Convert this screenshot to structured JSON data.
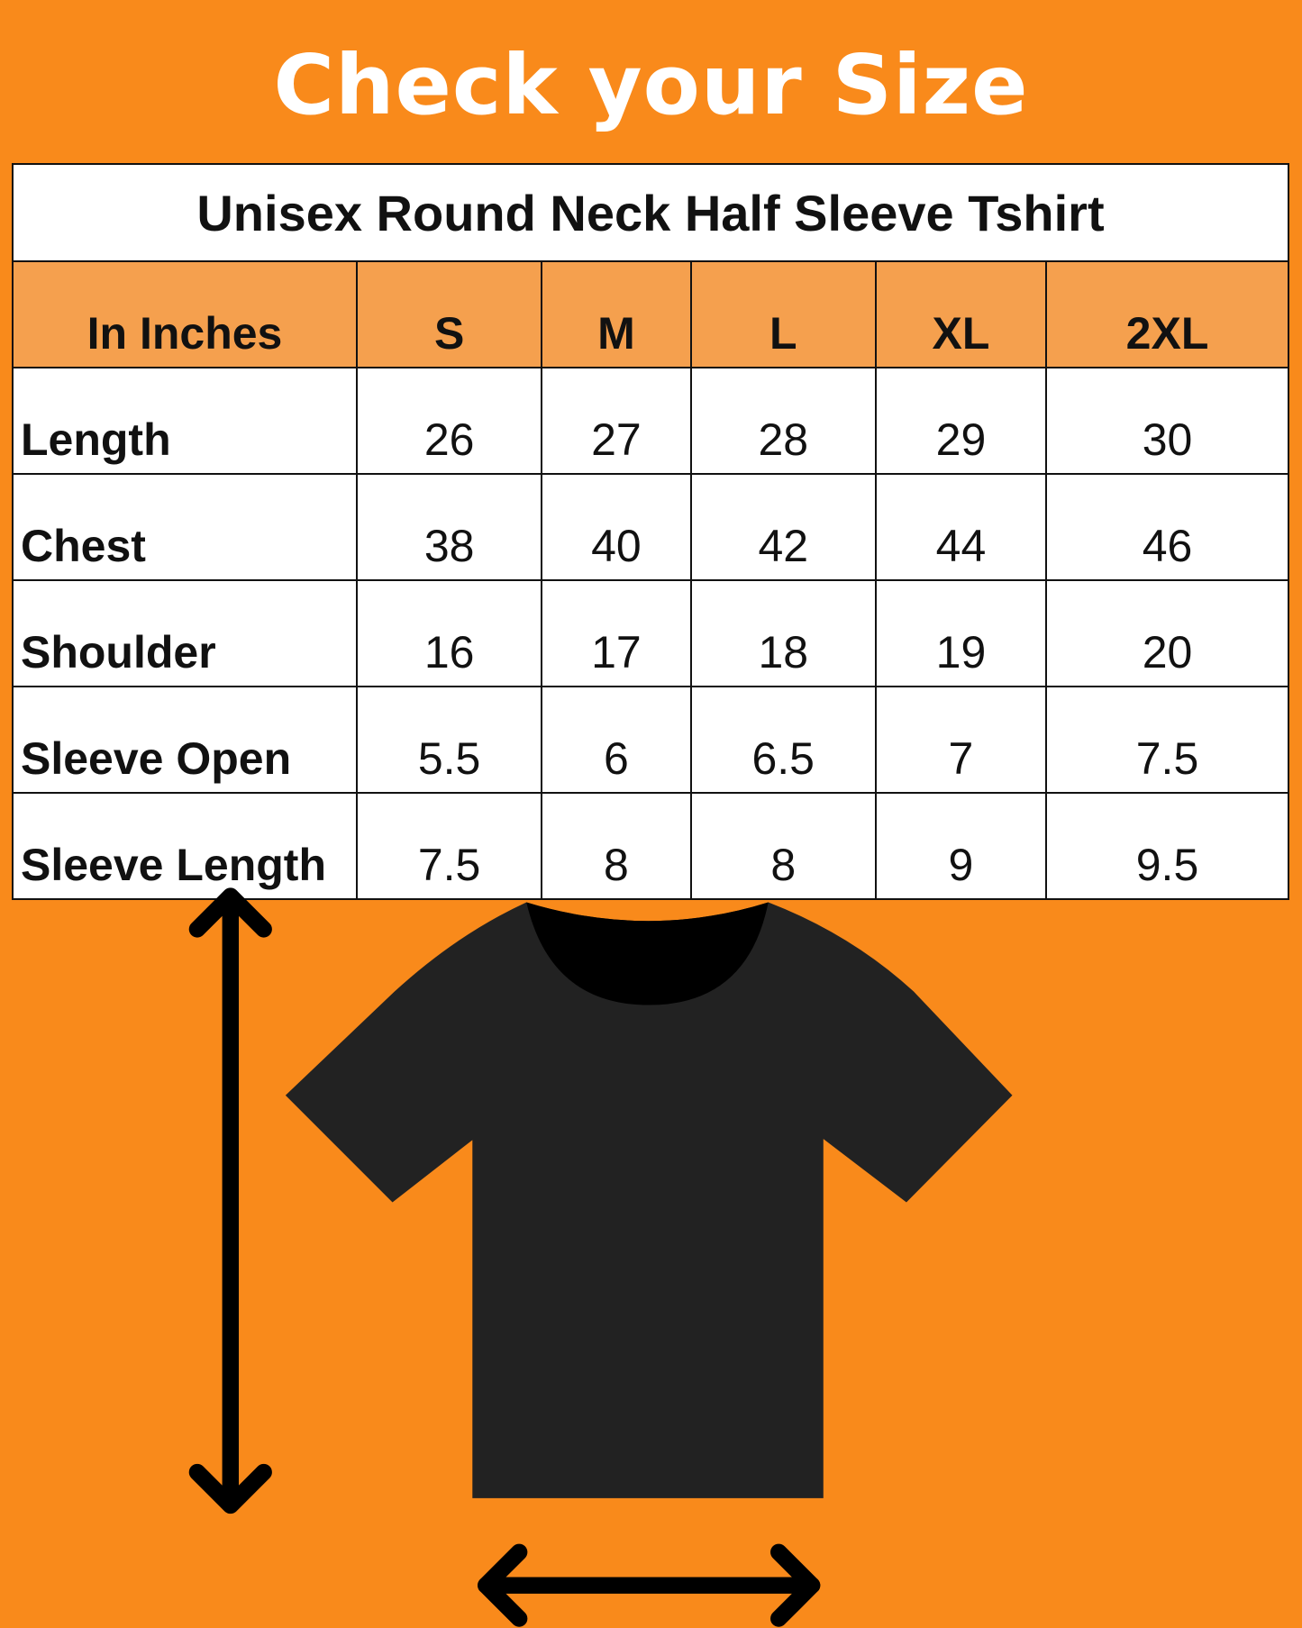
{
  "title": "Check your Size",
  "colors": {
    "background": "#F98A1B",
    "header_row": "#F5A04E",
    "shirt": "#222222"
  },
  "chart_data": {
    "type": "table",
    "title": "Unisex Round Neck Half Sleeve Tshirt",
    "columns": [
      "In Inches",
      "S",
      "M",
      "L",
      "XL",
      "2XL"
    ],
    "rows": [
      {
        "label": "Length",
        "values": [
          "26",
          "27",
          "28",
          "29",
          "30"
        ]
      },
      {
        "label": "Chest",
        "values": [
          "38",
          "40",
          "42",
          "44",
          "46"
        ]
      },
      {
        "label": "Shoulder",
        "values": [
          "16",
          "17",
          "18",
          "19",
          "20"
        ]
      },
      {
        "label": "Sleeve Open",
        "values": [
          "5.5",
          "6",
          "6.5",
          "7",
          "7.5"
        ]
      },
      {
        "label": "Sleeve Length",
        "values": [
          "7.5",
          "8",
          "8",
          "9",
          "9.5"
        ]
      }
    ]
  },
  "illustration": {
    "icons": [
      "tshirt-icon",
      "vertical-arrow-icon",
      "horizontal-arrow-icon"
    ]
  }
}
